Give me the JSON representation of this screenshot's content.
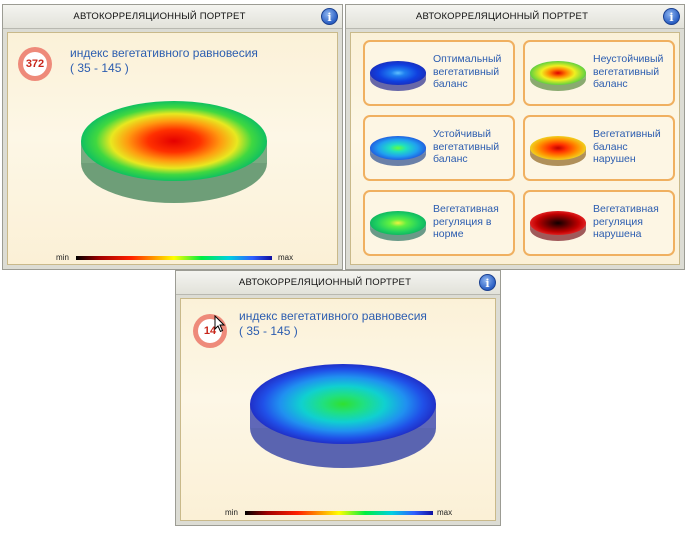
{
  "panel_top_left": {
    "title": "АВТОКОРРЕЛЯЦИОННЫЙ ПОРТРЕТ",
    "index_value": "372",
    "index_title": "индекс вегетативного равновесия",
    "index_range": "( 35 - 145 )",
    "scale_min": "min",
    "scale_max": "max"
  },
  "panel_legend": {
    "title": "АВТОКОРРЕЛЯЦИОННЫЙ ПОРТРЕТ",
    "tiles": [
      {
        "line1": "Оптимальный",
        "line2": "вегетативный",
        "line3": "баланс"
      },
      {
        "line1": "Неустойчивый",
        "line2": "вегетативный",
        "line3": "баланс"
      },
      {
        "line1": "Устойчивый",
        "line2": "вегетативный",
        "line3": "баланс"
      },
      {
        "line1": "Вегетативный",
        "line2": "баланс",
        "line3": "нарушен"
      },
      {
        "line1": "Вегетативная",
        "line2": "регуляция в",
        "line3": "норме"
      },
      {
        "line1": "Вегетативная",
        "line2": "регуляция",
        "line3": "нарушена"
      }
    ]
  },
  "panel_bottom": {
    "title": "АВТОКОРРЕЛЯЦИОННЫЙ ПОРТРЕТ",
    "index_value": "14",
    "index_title": "индекс вегетативного равновесия",
    "index_range": "( 35 - 145 )",
    "scale_min": "min",
    "scale_max": "max"
  },
  "icons": {
    "info": "info-icon",
    "cursor": "mouse-cursor-icon"
  },
  "colors": {
    "index_text": "#2c5db0",
    "badge": "#ee8a7a",
    "badge_text": "#c8261a",
    "tile_border": "#f0b060"
  }
}
